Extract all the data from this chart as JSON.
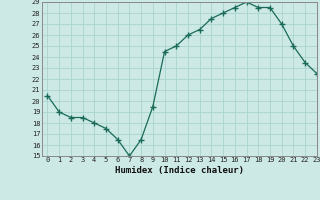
{
  "x": [
    0,
    1,
    2,
    3,
    4,
    5,
    6,
    7,
    8,
    9,
    10,
    11,
    12,
    13,
    14,
    15,
    16,
    17,
    18,
    19,
    20,
    21,
    22,
    23
  ],
  "y": [
    20.5,
    19.0,
    18.5,
    18.5,
    18.0,
    17.5,
    16.5,
    15.0,
    16.5,
    19.5,
    24.5,
    25.0,
    26.0,
    26.5,
    27.5,
    28.0,
    28.5,
    29.0,
    28.5,
    28.5,
    27.0,
    25.0,
    23.5,
    22.5
  ],
  "xlabel": "Humidex (Indice chaleur)",
  "ylim": [
    15,
    29
  ],
  "xlim": [
    -0.5,
    23
  ],
  "yticks": [
    15,
    16,
    17,
    18,
    19,
    20,
    21,
    22,
    23,
    24,
    25,
    26,
    27,
    28,
    29
  ],
  "xticks": [
    0,
    1,
    2,
    3,
    4,
    5,
    6,
    7,
    8,
    9,
    10,
    11,
    12,
    13,
    14,
    15,
    16,
    17,
    18,
    19,
    20,
    21,
    22,
    23
  ],
  "line_color": "#1a6b5a",
  "marker": "+",
  "bg_color": "#cce9e5",
  "grid_color": "#aad4ce",
  "axis_color": "#888888",
  "tick_fontsize": 5.0,
  "xlabel_fontsize": 6.5
}
